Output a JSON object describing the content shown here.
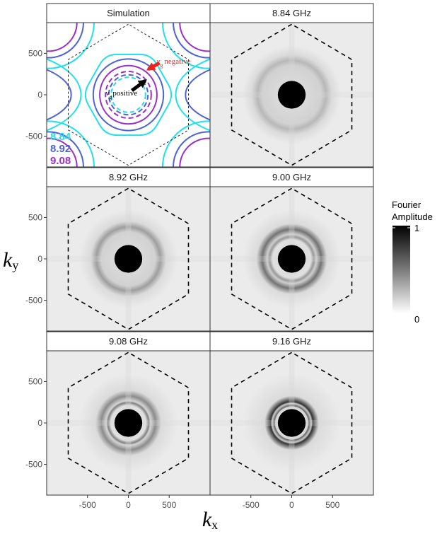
{
  "chart_data": {
    "type": "heatmap",
    "xlabel": "k",
    "xlabel_sub": "x",
    "ylabel": "k",
    "ylabel_sub": "y",
    "xticks": [
      -500,
      0,
      500
    ],
    "yticks": [
      500,
      0,
      -500
    ],
    "xlim": [
      -1000,
      1000
    ],
    "ylim": [
      -870,
      870
    ],
    "hexagon_circumradius": 850,
    "panels": [
      {
        "id": "sim",
        "title": "Simulation",
        "type": "contour"
      },
      {
        "id": "p884",
        "title": "8.84 GHz",
        "ring_radius": 420,
        "ring_strength": 0.28,
        "inner_ring_radius": 0,
        "inner_ring_strength": 0
      },
      {
        "id": "p892",
        "title": "8.92 GHz",
        "ring_radius": 390,
        "ring_strength": 0.38,
        "inner_ring_radius": 0,
        "inner_ring_strength": 0
      },
      {
        "id": "p900",
        "title": "9.00 GHz",
        "ring_radius": 360,
        "ring_strength": 0.55,
        "inner_ring_radius": 270,
        "inner_ring_strength": 0.3
      },
      {
        "id": "p908",
        "title": "9.08 GHz",
        "ring_radius": 330,
        "ring_strength": 0.45,
        "inner_ring_radius": 250,
        "inner_ring_strength": 0.4
      },
      {
        "id": "p916",
        "title": "9.16 GHz",
        "ring_radius": 260,
        "ring_strength": 0.8,
        "inner_ring_radius": 210,
        "inner_ring_strength": 0.5
      }
    ],
    "simulation": {
      "legend": [
        {
          "label": "8.84",
          "color": "#22e0e8"
        },
        {
          "label": "8.92",
          "color": "#4f63d8"
        },
        {
          "label": "9.08",
          "color": "#9b30c8"
        }
      ],
      "annotation_negative": {
        "v": "v",
        "sub": "g",
        "text": "negative",
        "color": "#e8241c"
      },
      "annotation_positive": {
        "v": "v",
        "sub": "g",
        "text": "positive",
        "color": "#000000"
      }
    },
    "colorbar": {
      "title_line1": "Fourier",
      "title_line2": "Amplitude",
      "max_label": "1",
      "min_label": "0",
      "range": [
        0,
        1
      ]
    }
  }
}
